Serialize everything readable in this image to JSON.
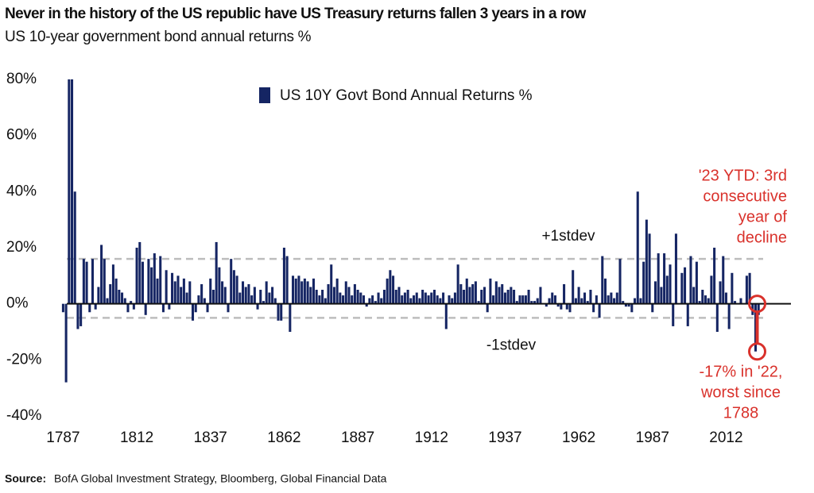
{
  "chart_data": {
    "type": "bar",
    "title": "Never in the history of the US republic have US Treasury returns fallen 3 years in a row",
    "subtitle": "US 10-year government bond annual returns %",
    "source": {
      "label": "Source:",
      "text": "BofA Global Investment Strategy, Bloomberg, Global Financial Data"
    },
    "x": [
      1787,
      1788,
      1789,
      1790,
      1791,
      1792,
      1793,
      1794,
      1795,
      1796,
      1797,
      1798,
      1799,
      1800,
      1801,
      1802,
      1803,
      1804,
      1805,
      1806,
      1807,
      1808,
      1809,
      1810,
      1811,
      1812,
      1813,
      1814,
      1815,
      1816,
      1817,
      1818,
      1819,
      1820,
      1821,
      1822,
      1823,
      1824,
      1825,
      1826,
      1827,
      1828,
      1829,
      1830,
      1831,
      1832,
      1833,
      1834,
      1835,
      1836,
      1837,
      1838,
      1839,
      1840,
      1841,
      1842,
      1843,
      1844,
      1845,
      1846,
      1847,
      1848,
      1849,
      1850,
      1851,
      1852,
      1853,
      1854,
      1855,
      1856,
      1857,
      1858,
      1859,
      1860,
      1861,
      1862,
      1863,
      1864,
      1865,
      1866,
      1867,
      1868,
      1869,
      1870,
      1871,
      1872,
      1873,
      1874,
      1875,
      1876,
      1877,
      1878,
      1879,
      1880,
      1881,
      1882,
      1883,
      1884,
      1885,
      1886,
      1887,
      1888,
      1889,
      1890,
      1891,
      1892,
      1893,
      1894,
      1895,
      1896,
      1897,
      1898,
      1899,
      1900,
      1901,
      1902,
      1903,
      1904,
      1905,
      1906,
      1907,
      1908,
      1909,
      1910,
      1911,
      1912,
      1913,
      1914,
      1915,
      1916,
      1917,
      1918,
      1919,
      1920,
      1921,
      1922,
      1923,
      1924,
      1925,
      1926,
      1927,
      1928,
      1929,
      1930,
      1931,
      1932,
      1933,
      1934,
      1935,
      1936,
      1937,
      1938,
      1939,
      1940,
      1941,
      1942,
      1943,
      1944,
      1945,
      1946,
      1947,
      1948,
      1949,
      1950,
      1951,
      1952,
      1953,
      1954,
      1955,
      1956,
      1957,
      1958,
      1959,
      1960,
      1961,
      1962,
      1963,
      1964,
      1965,
      1966,
      1967,
      1968,
      1969,
      1970,
      1971,
      1972,
      1973,
      1974,
      1975,
      1976,
      1977,
      1978,
      1979,
      1980,
      1981,
      1982,
      1983,
      1984,
      1985,
      1986,
      1987,
      1988,
      1989,
      1990,
      1991,
      1992,
      1993,
      1994,
      1995,
      1996,
      1997,
      1998,
      1999,
      2000,
      2001,
      2002,
      2003,
      2004,
      2005,
      2006,
      2007,
      2008,
      2009,
      2010,
      2011,
      2012,
      2013,
      2014,
      2015,
      2016,
      2017,
      2018,
      2019,
      2020,
      2021,
      2022,
      2023
    ],
    "series": [
      {
        "name": "US 10Y Govt Bond Annual Returns %",
        "color": "#152563",
        "values": [
          -3,
          -28,
          80,
          80,
          40,
          -9,
          -8,
          16,
          15,
          -3,
          16,
          -2,
          6,
          21,
          16,
          2,
          7,
          14,
          9,
          5,
          4,
          2,
          -3,
          1,
          -2,
          20,
          22,
          15,
          -4,
          16,
          13,
          18,
          9,
          17,
          -3,
          12,
          -2,
          11,
          8,
          10,
          6,
          9,
          4,
          8,
          -6,
          -3,
          3,
          7,
          2,
          -3,
          9,
          5,
          22,
          13,
          8,
          6,
          -3,
          16,
          12,
          10,
          4,
          8,
          6,
          7,
          3,
          6,
          -2,
          5,
          1,
          8,
          4,
          6,
          2,
          -6,
          -6,
          20,
          17,
          -10,
          10,
          9,
          10,
          8,
          9,
          8,
          6,
          9,
          5,
          3,
          5,
          2,
          7,
          14,
          6,
          9,
          4,
          3,
          8,
          6,
          3,
          7,
          5,
          4,
          3,
          -1,
          2,
          3,
          1,
          4,
          2,
          5,
          9,
          12,
          10,
          5,
          6,
          3,
          4,
          5,
          2,
          3,
          4,
          2,
          5,
          4,
          3,
          4,
          5,
          3,
          2,
          4,
          -9,
          3,
          2,
          4,
          14,
          7,
          5,
          9,
          6,
          7,
          8,
          1,
          5,
          6,
          -3,
          9,
          3,
          8,
          6,
          7,
          4,
          5,
          6,
          5,
          1,
          3,
          3,
          3,
          5,
          1,
          1,
          2,
          6,
          0,
          -1,
          2,
          4,
          3,
          -1,
          -2,
          7,
          -2,
          -3,
          12,
          2,
          6,
          2,
          4,
          1,
          5,
          -3,
          3,
          -5,
          17,
          9,
          3,
          4,
          2,
          4,
          16,
          1,
          -1,
          -1,
          -3,
          2,
          40,
          2,
          15,
          30,
          25,
          -3,
          8,
          18,
          6,
          18,
          10,
          14,
          -8,
          25,
          0,
          11,
          13,
          -8,
          17,
          6,
          15,
          1,
          5,
          3,
          2,
          10,
          20,
          -10,
          8,
          17,
          4,
          -9,
          11,
          1,
          0,
          2,
          0,
          10,
          11,
          -4,
          -17,
          -4
        ]
      }
    ],
    "xlim": [
      1785,
      2034
    ],
    "xticks": [
      1787,
      1812,
      1837,
      1862,
      1887,
      1912,
      1937,
      1962,
      1987,
      2012
    ],
    "ylim": [
      -40,
      80
    ],
    "yticks": [
      {
        "value": -40,
        "label": "-40%"
      },
      {
        "value": -20,
        "label": "-20%"
      },
      {
        "value": 0,
        "label": "0%"
      },
      {
        "value": 20,
        "label": "20%"
      },
      {
        "value": 40,
        "label": "40%"
      },
      {
        "value": 60,
        "label": "60%"
      },
      {
        "value": 80,
        "label": "80%"
      }
    ],
    "reference_lines": [
      {
        "value": 16,
        "label": "+1stdev"
      },
      {
        "value": -5,
        "label": "-1stdev"
      }
    ],
    "annotations": [
      {
        "lines": [
          "'23 YTD: 3rd",
          "consecutive",
          "year of",
          "decline"
        ],
        "color": "#d9312b"
      },
      {
        "lines": [
          "-17% in '22,",
          "worst since",
          "1788"
        ],
        "color": "#d9312b"
      }
    ],
    "legend": "top"
  }
}
